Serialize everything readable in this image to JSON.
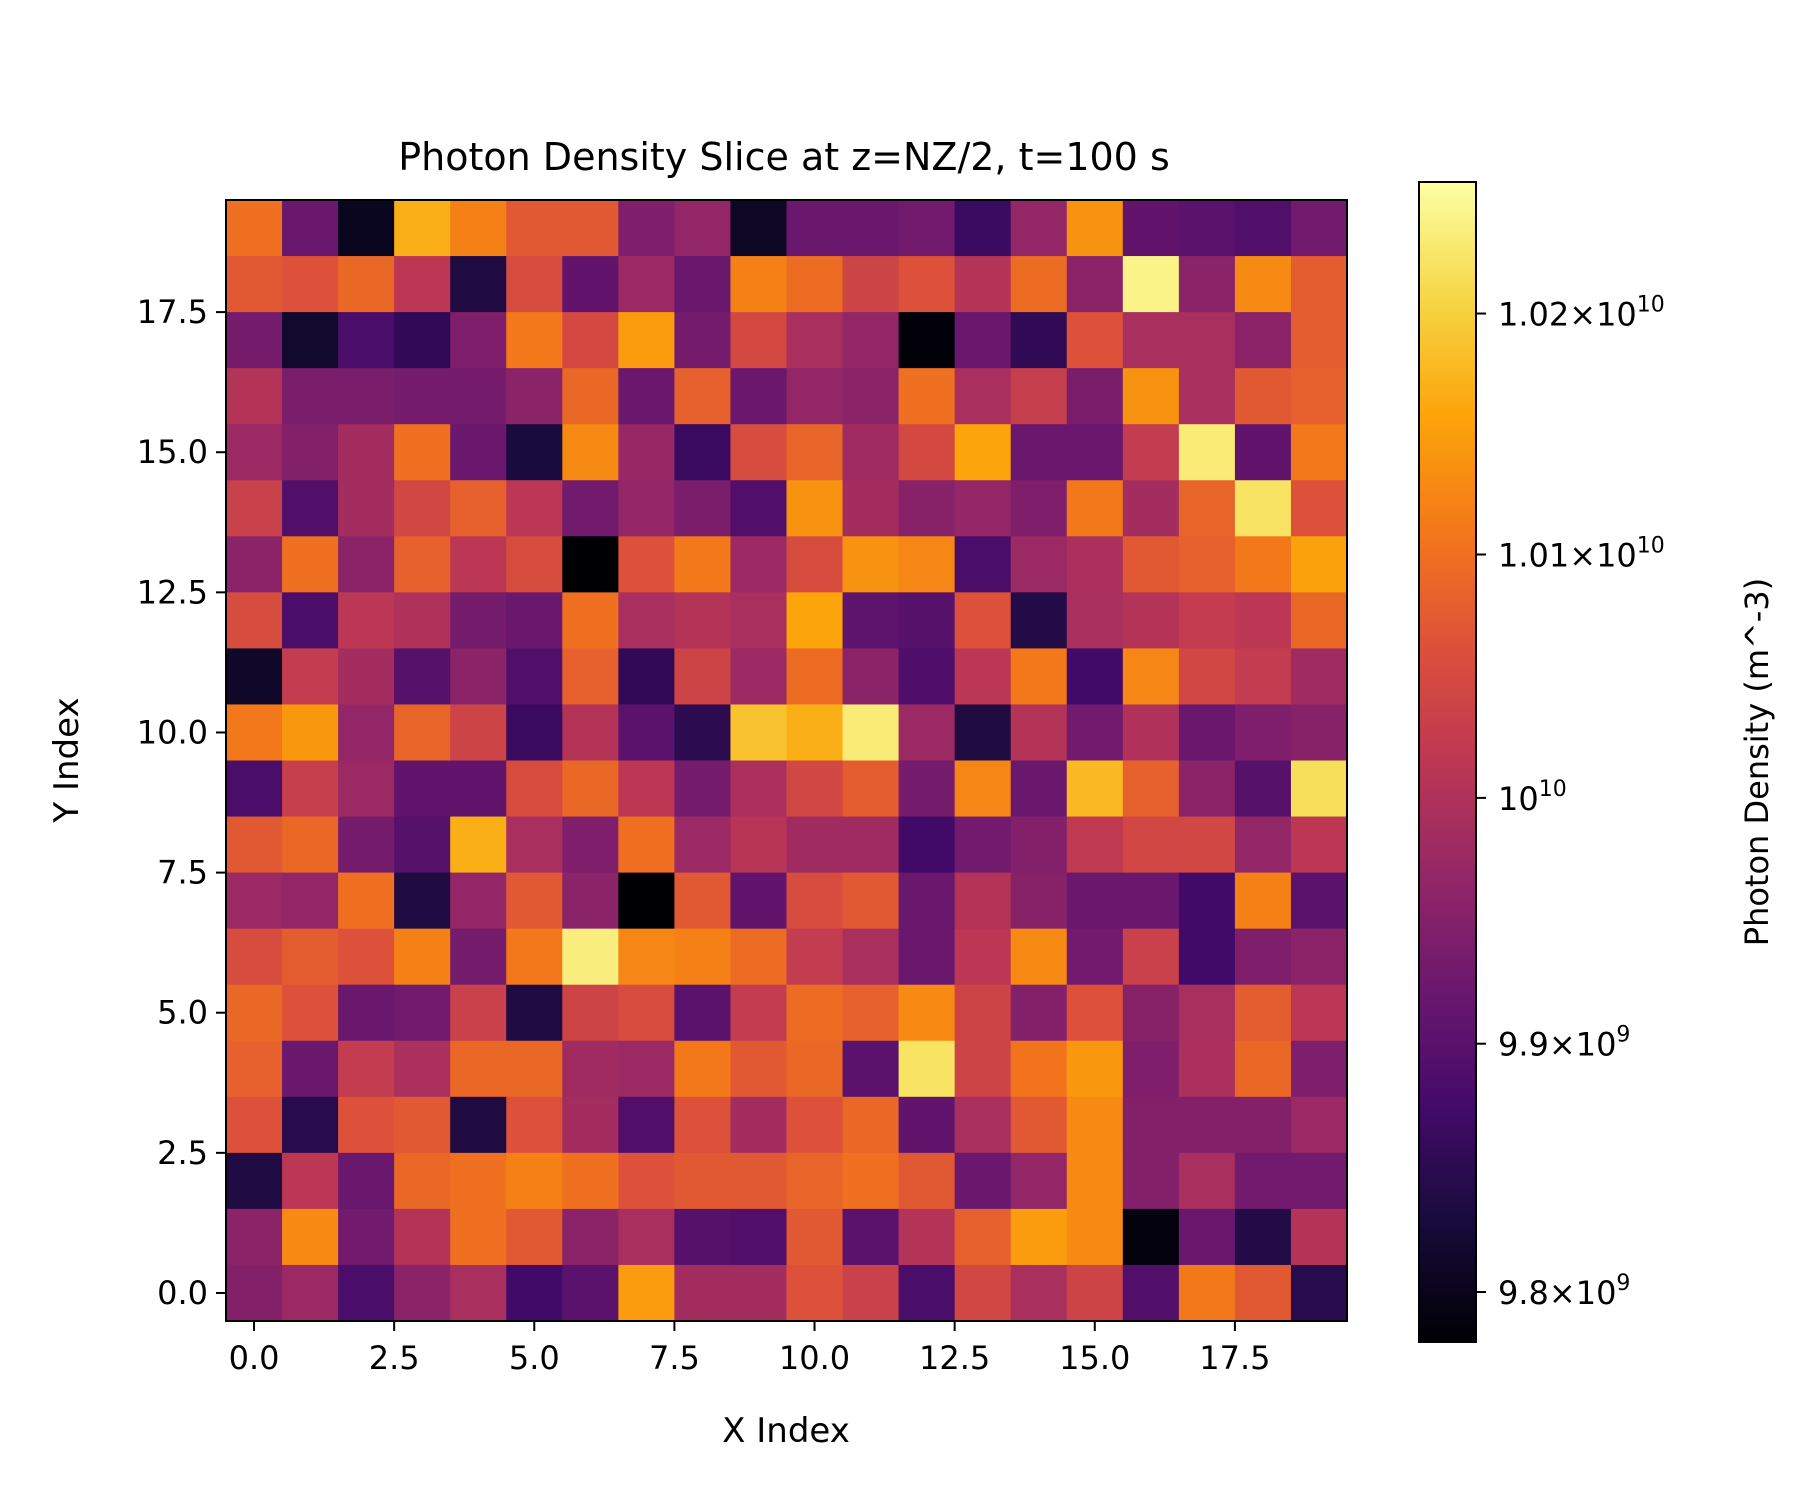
{
  "chart_data": {
    "type": "heatmap",
    "title": "Photon Density Slice at z=NZ/2, t=100 s",
    "xlabel": "X Index",
    "ylabel": "Y Index",
    "xlim": [
      -0.5,
      19.5
    ],
    "ylim": [
      -0.5,
      19.5
    ],
    "x_ticks": [
      0,
      2.5,
      5,
      7.5,
      10,
      12.5,
      15,
      17.5
    ],
    "x_tick_labels": [
      "0.0",
      "2.5",
      "5.0",
      "7.5",
      "10.0",
      "12.5",
      "15.0",
      "17.5"
    ],
    "y_ticks": [
      0,
      2.5,
      5,
      7.5,
      10,
      12.5,
      15,
      17.5
    ],
    "y_tick_labels": [
      "0.0",
      "2.5",
      "5.0",
      "7.5",
      "10.0",
      "12.5",
      "15.0",
      "17.5"
    ],
    "colormap": "inferno",
    "colorbar": {
      "label": "Photon Density (m^-3)",
      "scale": "log",
      "range": [
        9780000000.0,
        10255000000.0
      ],
      "ticks": [
        {
          "value": 9800000000.0,
          "mantissa": "9.8",
          "exponent": "9"
        },
        {
          "value": 9900000000.0,
          "mantissa": "9.9",
          "exponent": "9"
        },
        {
          "value": 10000000000.0,
          "mantissa": "",
          "exponent": "10"
        },
        {
          "value": 10100000000.0,
          "mantissa": "1.01",
          "exponent": "10"
        },
        {
          "value": 10200000000.0,
          "mantissa": "1.02",
          "exponent": "10"
        }
      ]
    },
    "value_unit": "fraction of colorbar range (0 = 9.78e9, 1 = 1.0255e10, log scale)",
    "rows_top_to_bottom_y19_to_y0": [
      [
        0.68,
        0.3,
        0.05,
        0.82,
        0.72,
        0.62,
        0.62,
        0.35,
        0.4,
        0.06,
        0.3,
        0.3,
        0.32,
        0.18,
        0.4,
        0.76,
        0.28,
        0.26,
        0.24,
        0.32
      ],
      [
        0.62,
        0.6,
        0.66,
        0.5,
        0.12,
        0.58,
        0.28,
        0.42,
        0.3,
        0.72,
        0.67,
        0.55,
        0.6,
        0.48,
        0.67,
        0.38,
        0.97,
        0.38,
        0.74,
        0.63
      ],
      [
        0.33,
        0.08,
        0.22,
        0.16,
        0.35,
        0.7,
        0.57,
        0.78,
        0.33,
        0.57,
        0.45,
        0.4,
        0.01,
        0.3,
        0.16,
        0.6,
        0.45,
        0.45,
        0.38,
        0.63
      ],
      [
        0.48,
        0.34,
        0.34,
        0.33,
        0.33,
        0.38,
        0.66,
        0.3,
        0.64,
        0.3,
        0.4,
        0.38,
        0.68,
        0.45,
        0.53,
        0.34,
        0.76,
        0.45,
        0.62,
        0.64
      ],
      [
        0.42,
        0.36,
        0.44,
        0.68,
        0.3,
        0.11,
        0.74,
        0.41,
        0.18,
        0.58,
        0.65,
        0.43,
        0.57,
        0.8,
        0.3,
        0.3,
        0.52,
        0.95,
        0.28,
        0.7
      ],
      [
        0.54,
        0.24,
        0.44,
        0.56,
        0.64,
        0.5,
        0.32,
        0.4,
        0.34,
        0.24,
        0.76,
        0.44,
        0.37,
        0.4,
        0.35,
        0.7,
        0.44,
        0.65,
        0.93,
        0.6
      ],
      [
        0.38,
        0.68,
        0.38,
        0.64,
        0.5,
        0.58,
        0.0,
        0.6,
        0.7,
        0.42,
        0.58,
        0.76,
        0.73,
        0.22,
        0.42,
        0.46,
        0.62,
        0.64,
        0.7,
        0.79
      ],
      [
        0.58,
        0.22,
        0.5,
        0.47,
        0.33,
        0.3,
        0.68,
        0.45,
        0.48,
        0.45,
        0.8,
        0.27,
        0.25,
        0.6,
        0.13,
        0.45,
        0.48,
        0.52,
        0.5,
        0.66
      ],
      [
        0.07,
        0.52,
        0.44,
        0.25,
        0.38,
        0.24,
        0.64,
        0.16,
        0.55,
        0.42,
        0.67,
        0.38,
        0.23,
        0.5,
        0.7,
        0.2,
        0.73,
        0.56,
        0.52,
        0.43
      ],
      [
        0.7,
        0.77,
        0.4,
        0.65,
        0.55,
        0.18,
        0.48,
        0.26,
        0.15,
        0.86,
        0.82,
        0.95,
        0.42,
        0.12,
        0.48,
        0.32,
        0.47,
        0.3,
        0.35,
        0.37
      ],
      [
        0.22,
        0.53,
        0.42,
        0.28,
        0.28,
        0.58,
        0.66,
        0.5,
        0.33,
        0.46,
        0.56,
        0.63,
        0.33,
        0.73,
        0.3,
        0.84,
        0.64,
        0.38,
        0.25,
        0.92
      ],
      [
        0.62,
        0.66,
        0.33,
        0.25,
        0.82,
        0.45,
        0.35,
        0.68,
        0.42,
        0.49,
        0.43,
        0.43,
        0.2,
        0.32,
        0.36,
        0.51,
        0.56,
        0.56,
        0.4,
        0.5
      ],
      [
        0.42,
        0.4,
        0.68,
        0.12,
        0.4,
        0.62,
        0.38,
        0.0,
        0.62,
        0.28,
        0.58,
        0.62,
        0.3,
        0.48,
        0.37,
        0.3,
        0.3,
        0.2,
        0.72,
        0.26
      ],
      [
        0.58,
        0.63,
        0.6,
        0.72,
        0.33,
        0.7,
        0.96,
        0.73,
        0.72,
        0.67,
        0.52,
        0.45,
        0.3,
        0.5,
        0.74,
        0.32,
        0.54,
        0.2,
        0.35,
        0.38
      ],
      [
        0.66,
        0.6,
        0.3,
        0.32,
        0.54,
        0.12,
        0.55,
        0.58,
        0.26,
        0.52,
        0.67,
        0.64,
        0.74,
        0.55,
        0.36,
        0.6,
        0.37,
        0.45,
        0.63,
        0.5
      ],
      [
        0.64,
        0.3,
        0.52,
        0.46,
        0.66,
        0.66,
        0.43,
        0.42,
        0.7,
        0.62,
        0.66,
        0.26,
        0.93,
        0.55,
        0.69,
        0.77,
        0.35,
        0.46,
        0.66,
        0.35
      ],
      [
        0.6,
        0.14,
        0.6,
        0.62,
        0.12,
        0.6,
        0.44,
        0.24,
        0.6,
        0.44,
        0.6,
        0.66,
        0.28,
        0.45,
        0.62,
        0.74,
        0.36,
        0.36,
        0.36,
        0.42
      ],
      [
        0.12,
        0.5,
        0.3,
        0.66,
        0.68,
        0.72,
        0.68,
        0.6,
        0.62,
        0.62,
        0.65,
        0.68,
        0.62,
        0.3,
        0.4,
        0.74,
        0.36,
        0.45,
        0.32,
        0.32
      ],
      [
        0.38,
        0.74,
        0.32,
        0.48,
        0.68,
        0.62,
        0.38,
        0.45,
        0.25,
        0.24,
        0.62,
        0.26,
        0.48,
        0.64,
        0.78,
        0.74,
        0.02,
        0.3,
        0.13,
        0.48
      ],
      [
        0.36,
        0.42,
        0.22,
        0.38,
        0.45,
        0.2,
        0.26,
        0.78,
        0.44,
        0.44,
        0.6,
        0.54,
        0.22,
        0.56,
        0.45,
        0.55,
        0.24,
        0.7,
        0.62,
        0.14
      ]
    ]
  }
}
